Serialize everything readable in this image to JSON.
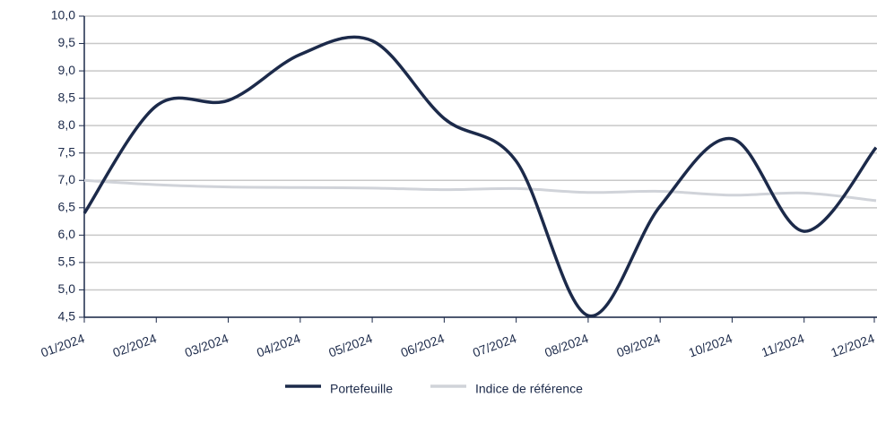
{
  "chart_data": {
    "type": "line",
    "categories": [
      "01/2024",
      "02/2024",
      "03/2024",
      "04/2024",
      "05/2024",
      "06/2024",
      "07/2024",
      "08/2024",
      "09/2024",
      "10/2024",
      "11/2024",
      "12/2024"
    ],
    "series": [
      {
        "name": "Portefeuille",
        "color": "#1c2a4a",
        "values": [
          6.4,
          8.36,
          8.46,
          9.3,
          9.55,
          8.13,
          7.35,
          4.53,
          6.53,
          7.76,
          6.07,
          7.6
        ]
      },
      {
        "name": "Indice de référence",
        "color": "#d0d3d9",
        "values": [
          7.0,
          6.92,
          6.88,
          6.87,
          6.86,
          6.83,
          6.85,
          6.78,
          6.8,
          6.73,
          6.77,
          6.63
        ]
      }
    ],
    "ylim": [
      4.5,
      10
    ],
    "yticks": [
      {
        "value": 4.5,
        "label": "4,5"
      },
      {
        "value": 5,
        "label": "5,0"
      },
      {
        "value": 5.5,
        "label": "5,5"
      },
      {
        "value": 6,
        "label": "6,0"
      },
      {
        "value": 6.5,
        "label": "6,5"
      },
      {
        "value": 7,
        "label": "7,0"
      },
      {
        "value": 7.5,
        "label": "7,5"
      },
      {
        "value": 8,
        "label": "8,0"
      },
      {
        "value": 8.5,
        "label": "8,5"
      },
      {
        "value": 9,
        "label": "9,0"
      },
      {
        "value": 9.5,
        "label": "9,5"
      },
      {
        "value": 10,
        "label": "10,0"
      }
    ],
    "grid": true,
    "legend": "bottom"
  }
}
